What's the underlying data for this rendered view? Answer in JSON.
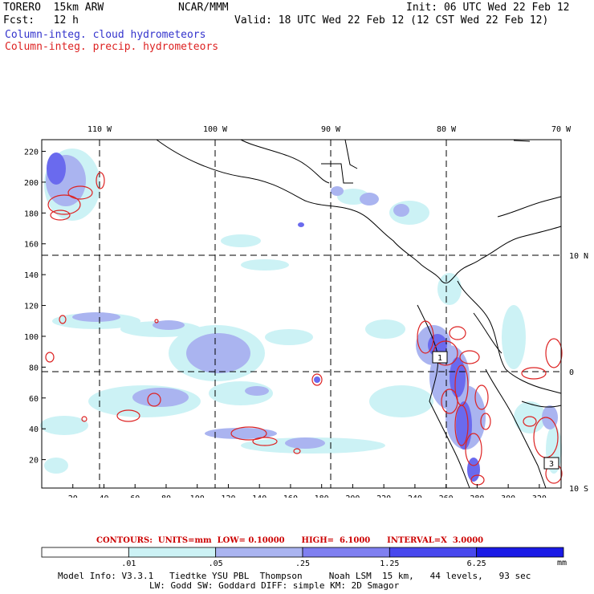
{
  "header": {
    "model": "TORERO  15km ARW",
    "org": "NCAR/MMM",
    "init": "Init: 06 UTC Wed 22 Feb 12",
    "fcst": "Fcst:   12 h",
    "valid": "Valid: 18 UTC Wed 22 Feb 12 (12 CST Wed 22 Feb 12)",
    "field1": "Column-integ. cloud hydrometeors",
    "field2": "Column-integ. precip. hydrometeors",
    "field1_color": "#3333cc",
    "field2_color": "#dd2222"
  },
  "map": {
    "lon_labels": [
      "110 W",
      "100 W",
      "90 W",
      "80 W",
      "70 W"
    ],
    "lat_labels": [
      "10 N",
      "0",
      "10 S"
    ],
    "y_ticks": [
      "20",
      "40",
      "60",
      "80",
      "100",
      "120",
      "140",
      "160",
      "180",
      "200",
      "220"
    ],
    "x_ticks": [
      "20",
      "40",
      "60",
      "80",
      "100",
      "120",
      "140",
      "160",
      "180",
      "200",
      "220",
      "240",
      "260",
      "280",
      "300",
      "320"
    ],
    "box_labels": [
      "1",
      "3"
    ]
  },
  "contour_info": "CONTOURS:  UNITS=mm  LOW= 0.10000      HIGH=  6.1000      INTERVAL=X  3.0000",
  "colorbar": {
    "levels": [
      ".01",
      ".05",
      ".25",
      "1.25",
      "6.25"
    ],
    "unit": "mm",
    "colors": [
      "#ffffff",
      "#ccf2f5",
      "#aab4f0",
      "#7f7ff0",
      "#4848ee",
      "#1a1ae6"
    ]
  },
  "footer": {
    "line1": "Model Info: V3.3.1   Tiedtke YSU PBL  Thompson     Noah LSM  15 km,   44 levels,   93 sec",
    "line2": "LW: Godd SW: Goddard DIFF: simple KM: 2D Smagor"
  }
}
